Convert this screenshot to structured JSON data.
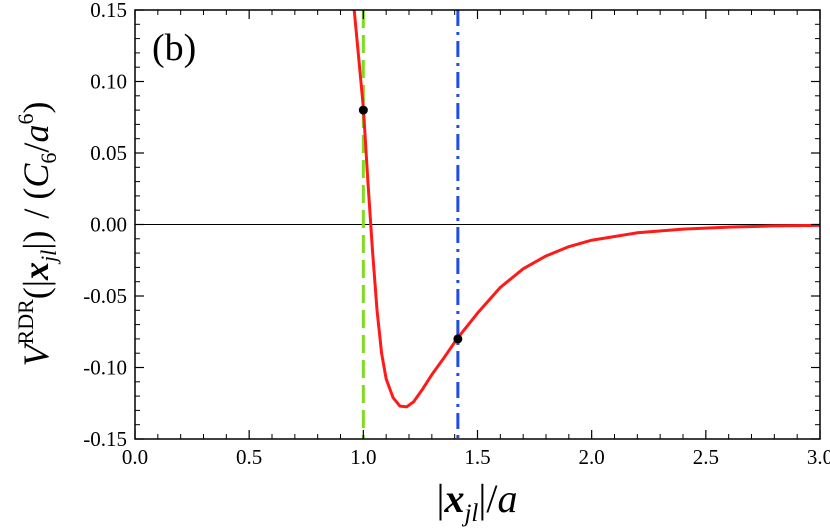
{
  "chart_data": {
    "type": "line",
    "panel_label": "(b)",
    "xlabel": {
      "bar_left": "|",
      "var": "x",
      "sub": "jl",
      "bar_right": "|",
      "rest": "/",
      "unit": "a"
    },
    "ylabel": {
      "var": "V",
      "sup": "RDR",
      "open": "(|",
      "arg": "x",
      "arg_sub": "jl",
      "close": "|)",
      "sep": "/ (",
      "c": "C",
      "c_sub": "6",
      "slash": "/",
      "a": "a",
      "a_sup": "6",
      "end": ")"
    },
    "xlim": [
      0.0,
      3.0
    ],
    "ylim": [
      -0.15,
      0.15
    ],
    "x_ticks": [
      "0.0",
      "0.5",
      "1.0",
      "1.5",
      "2.0",
      "2.5",
      "3.0"
    ],
    "y_ticks": [
      "0.15",
      "0.10",
      "0.05",
      "0.00",
      "-0.05",
      "-0.10",
      "-0.15"
    ],
    "grid": false,
    "zero_line": true,
    "series": [
      {
        "color": "#ff1a1a",
        "x": [
          0.96,
          0.98,
          1.0,
          1.02,
          1.04,
          1.06,
          1.08,
          1.1,
          1.13,
          1.16,
          1.19,
          1.22,
          1.26,
          1.3,
          1.35,
          1.41,
          1.5,
          1.6,
          1.7,
          1.8,
          1.9,
          2.0,
          2.2,
          2.4,
          2.6,
          2.8,
          3.0
        ],
        "y": [
          0.15,
          0.116,
          0.082,
          0.03,
          -0.018,
          -0.06,
          -0.09,
          -0.108,
          -0.121,
          -0.127,
          -0.1275,
          -0.124,
          -0.115,
          -0.105,
          -0.094,
          -0.08,
          -0.062,
          -0.044,
          -0.031,
          -0.022,
          -0.0155,
          -0.011,
          -0.0058,
          -0.0032,
          -0.0018,
          -0.001,
          -0.0006
        ]
      }
    ],
    "vertical_lines": [
      {
        "x": 1.0,
        "style": "dashed",
        "color": "#7ddc1f"
      },
      {
        "x": 1.414,
        "style": "dash-dot",
        "color": "#1f4fe0"
      }
    ],
    "points": [
      {
        "x": 1.0,
        "y": 0.08
      },
      {
        "x": 1.414,
        "y": -0.08
      }
    ]
  }
}
